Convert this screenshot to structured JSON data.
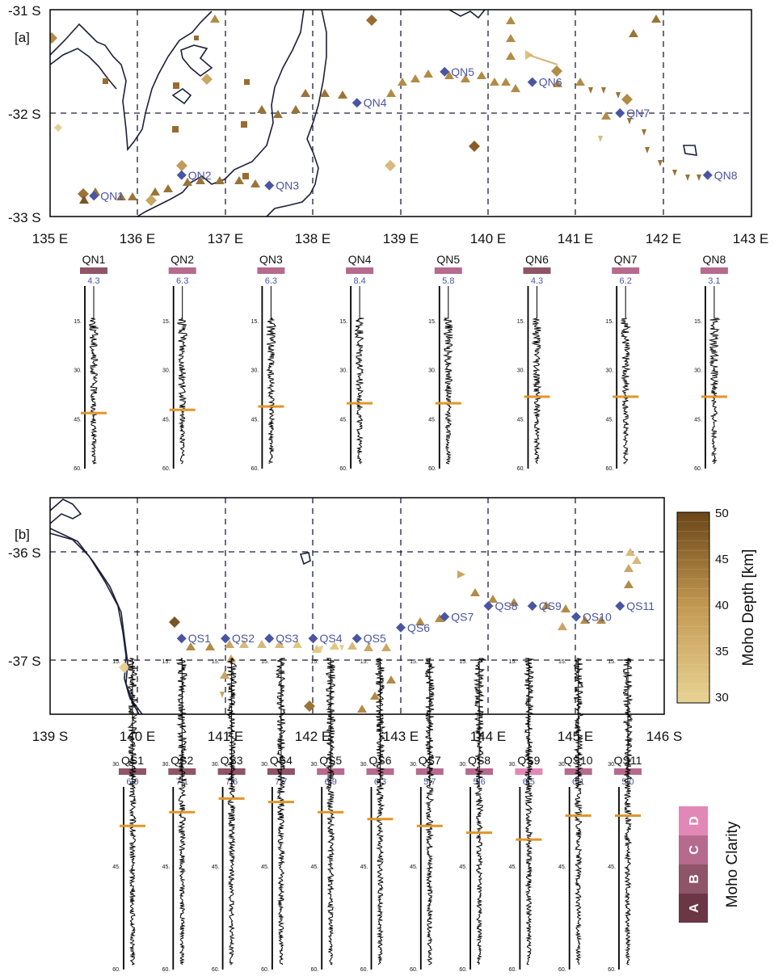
{
  "panel_a": {
    "label": "[a]",
    "lon_ticks": [
      "135 E",
      "136 E",
      "137 E",
      "138 E",
      "139 E",
      "140 E",
      "141 E",
      "142 E",
      "143 E"
    ],
    "lat_ticks": [
      "-31 S",
      "-32 S",
      "-33 S"
    ],
    "stations": [
      {
        "name": "QN1",
        "lon": 135.5,
        "lat": -32.8
      },
      {
        "name": "QN2",
        "lon": 136.5,
        "lat": -32.6
      },
      {
        "name": "QN3",
        "lon": 137.5,
        "lat": -32.7
      },
      {
        "name": "QN4",
        "lon": 138.5,
        "lat": -31.9
      },
      {
        "name": "QN5",
        "lon": 139.5,
        "lat": -31.6
      },
      {
        "name": "QN6",
        "lon": 140.5,
        "lat": -31.7
      },
      {
        "name": "QN7",
        "lon": 141.5,
        "lat": -32.0
      },
      {
        "name": "QN8",
        "lon": 142.5,
        "lat": -32.6
      }
    ],
    "traces": [
      {
        "name": "QN1",
        "value": "4.3",
        "moho_depth": 43,
        "clarity": "B"
      },
      {
        "name": "QN2",
        "value": "6.3",
        "moho_depth": 42,
        "clarity": "C"
      },
      {
        "name": "QN3",
        "value": "6.3",
        "moho_depth": 41,
        "clarity": "C"
      },
      {
        "name": "QN4",
        "value": "8.4",
        "moho_depth": 40,
        "clarity": "C"
      },
      {
        "name": "QN5",
        "value": "5.8",
        "moho_depth": 40,
        "clarity": "C"
      },
      {
        "name": "QN6",
        "value": "4.3",
        "moho_depth": 38,
        "clarity": "B"
      },
      {
        "name": "QN7",
        "value": "6.2",
        "moho_depth": 38,
        "clarity": "C"
      },
      {
        "name": "QN8",
        "value": "3.1",
        "moho_depth": 38,
        "clarity": "C"
      }
    ]
  },
  "panel_b": {
    "label": "[b]",
    "lon_ticks": [
      "139 S",
      "140 E",
      "141 E",
      "142 E",
      "143 E",
      "144 E",
      "145 E",
      "146 S"
    ],
    "lat_ticks": [
      "-36 S",
      "-37 S"
    ],
    "stations": [
      {
        "name": "QS1",
        "lon": 140.5,
        "lat": -36.8
      },
      {
        "name": "QS2",
        "lon": 141.0,
        "lat": -36.8
      },
      {
        "name": "QS3",
        "lon": 141.5,
        "lat": -36.8
      },
      {
        "name": "QS4",
        "lon": 142.0,
        "lat": -36.8
      },
      {
        "name": "QS5",
        "lon": 142.5,
        "lat": -36.8
      },
      {
        "name": "QS6",
        "lon": 143.0,
        "lat": -36.7
      },
      {
        "name": "QS7",
        "lon": 143.5,
        "lat": -36.6
      },
      {
        "name": "QS8",
        "lon": 144.0,
        "lat": -36.5
      },
      {
        "name": "QS9",
        "lon": 144.5,
        "lat": -36.5
      },
      {
        "name": "QS10",
        "lon": 145.0,
        "lat": -36.6
      },
      {
        "name": "QS11",
        "lon": 145.5,
        "lat": -36.5
      }
    ],
    "traces": [
      {
        "name": "QS1",
        "value": "6.0",
        "moho_depth": 39,
        "clarity": "B"
      },
      {
        "name": "QS2",
        "value": "7.1",
        "moho_depth": 37,
        "clarity": "B"
      },
      {
        "name": "QS3",
        "value": "7.6",
        "moho_depth": 35,
        "clarity": "B"
      },
      {
        "name": "QS4",
        "value": "7.7",
        "moho_depth": 35.5,
        "clarity": "B"
      },
      {
        "name": "QS5",
        "value": "6.9",
        "moho_depth": 37,
        "clarity": "C"
      },
      {
        "name": "QS6",
        "value": "6.3",
        "moho_depth": 38,
        "clarity": "C"
      },
      {
        "name": "QS7",
        "value": "5.7",
        "moho_depth": 39,
        "clarity": "C"
      },
      {
        "name": "QS8",
        "value": "5.6",
        "moho_depth": 40,
        "clarity": "C"
      },
      {
        "name": "QS9",
        "value": "6.5",
        "moho_depth": 41,
        "clarity": "D"
      },
      {
        "name": "QS10",
        "value": "6.1",
        "moho_depth": 37.5,
        "clarity": "C"
      },
      {
        "name": "QS11",
        "value": "5.0",
        "moho_depth": 37.5,
        "clarity": "C"
      }
    ]
  },
  "trace_depth_ticks": [
    "15.",
    "30.",
    "45.",
    "60."
  ],
  "colorbar": {
    "title": "Moho Depth [km]",
    "ticks": [
      "50",
      "45",
      "40",
      "35",
      "30"
    ],
    "min": 30,
    "max": 50,
    "color_low": "#e8d394",
    "color_high": "#6b4618"
  },
  "clarity_legend": {
    "title": "Moho Clarity",
    "levels": [
      "A",
      "B",
      "C",
      "D"
    ],
    "colors": {
      "A": "#6b3646",
      "B": "#8e5468",
      "C": "#b66a8e",
      "D": "#e288b6"
    }
  },
  "colors": {
    "station": "#4a55a2",
    "coast": "#1e1f3a",
    "moho_pick": "#e0962a"
  }
}
